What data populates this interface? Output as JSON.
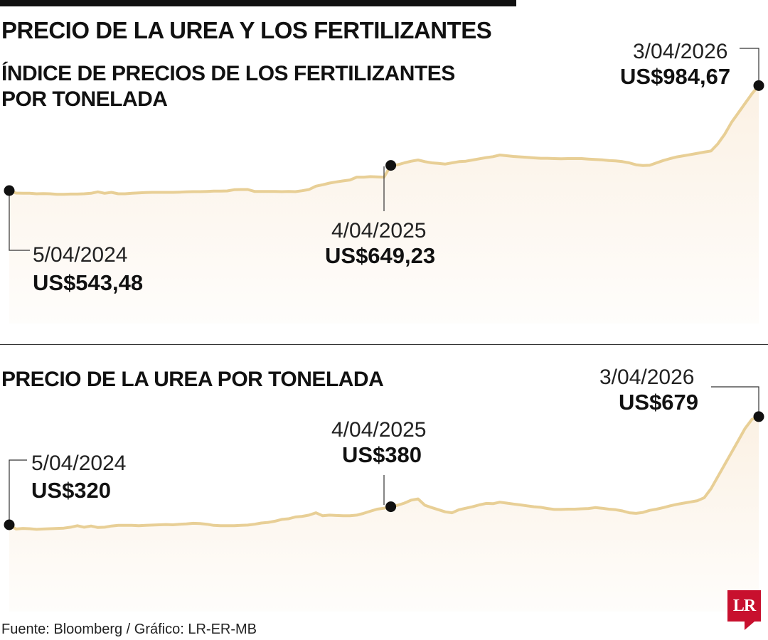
{
  "title": "PRECIO DE LA UREA Y LOS FERTILIZANTES",
  "source": "Fuente: Bloomberg / Gráfico: LR-ER-MB",
  "logo_text": "LR",
  "colors": {
    "line": "#e8cf96",
    "fill": "#fbf1e4",
    "marker": "#111111",
    "logo": "#c8102e"
  },
  "chart_data": [
    {
      "type": "area",
      "title": "ÍNDICE DE PRECIOS DE LOS FERTILIZANTES POR TONELADA",
      "annotations": [
        {
          "date": "5/04/2024",
          "value": "US$543,48"
        },
        {
          "date": "4/04/2025",
          "value": "US$649,23"
        },
        {
          "date": "3/04/2026",
          "value": "US$984,67"
        }
      ],
      "x_range": [
        "5/04/2024",
        "3/04/2026"
      ],
      "grid": false,
      "values": [
        543.5,
        533,
        532,
        532,
        530,
        531,
        530,
        528,
        528,
        529,
        529,
        530,
        532,
        538,
        532,
        536,
        530,
        530,
        532,
        534,
        535,
        536,
        536,
        536,
        536,
        537,
        538,
        539,
        539,
        540,
        541,
        541,
        542,
        547,
        548,
        548,
        540,
        540,
        540,
        540,
        539,
        540,
        539,
        543,
        548,
        562,
        568,
        575,
        580,
        584,
        588,
        600,
        600,
        602,
        601,
        600,
        649.2,
        652,
        660,
        667,
        672,
        665,
        660,
        658,
        655,
        660,
        665,
        667,
        672,
        677,
        682,
        686,
        693,
        690,
        687,
        685,
        683,
        681,
        679,
        679,
        678,
        677,
        678,
        678,
        678,
        676,
        674,
        673,
        670,
        668,
        665,
        660,
        652,
        649,
        650,
        660,
        670,
        678,
        685,
        690,
        695,
        700,
        705,
        710,
        740,
        780,
        830,
        870,
        910,
        950,
        984.7
      ]
    },
    {
      "type": "area",
      "title": "PRECIO DE LA UREA POR TONELADA",
      "annotations": [
        {
          "date": "5/04/2024",
          "value": "US$320"
        },
        {
          "date": "4/04/2025",
          "value": "US$380"
        },
        {
          "date": "3/04/2026",
          "value": "US$679"
        }
      ],
      "x_range": [
        "5/04/2024",
        "3/04/2026"
      ],
      "grid": false,
      "values": [
        320,
        306,
        308,
        307,
        305,
        306,
        307,
        308,
        309,
        312,
        317,
        312,
        316,
        311,
        312,
        316,
        318,
        318,
        318,
        317,
        318,
        319,
        320,
        321,
        320,
        322,
        323,
        325,
        324,
        322,
        318,
        317,
        317,
        317,
        318,
        319,
        322,
        326,
        328,
        332,
        338,
        340,
        346,
        348,
        352,
        360,
        350,
        352,
        351,
        350,
        350,
        352,
        358,
        365,
        372,
        375,
        380,
        385,
        392,
        402,
        406,
        385,
        377,
        370,
        363,
        360,
        370,
        375,
        380,
        386,
        391,
        390,
        395,
        392,
        389,
        386,
        383,
        380,
        378,
        374,
        371,
        371,
        372,
        372,
        373,
        374,
        377,
        375,
        372,
        370,
        366,
        360,
        358,
        361,
        368,
        372,
        377,
        383,
        388,
        392,
        396,
        400,
        410,
        440,
        480,
        520,
        560,
        600,
        640,
        670,
        679
      ]
    }
  ]
}
